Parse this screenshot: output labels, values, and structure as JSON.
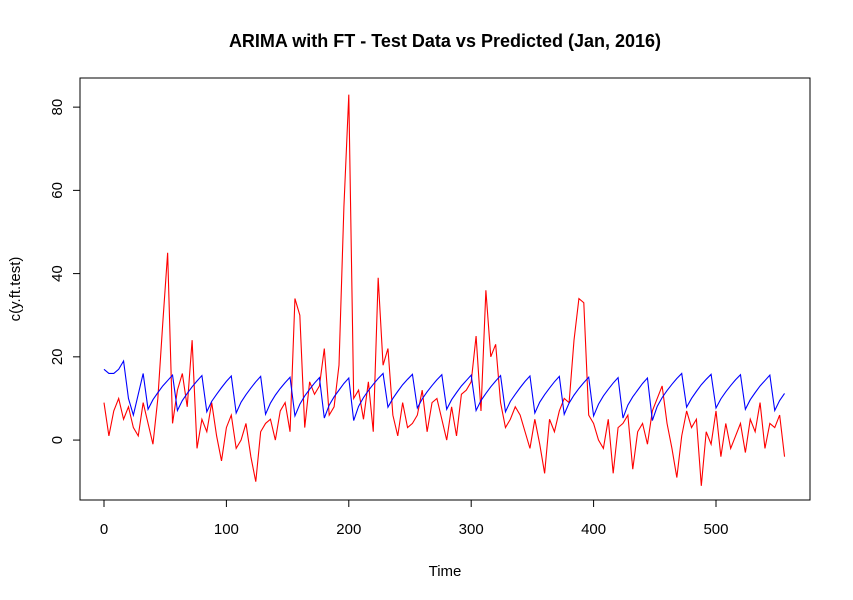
{
  "chart_data": {
    "type": "line",
    "title": "ARIMA with FT - Test Data vs Predicted (Jan, 2016)",
    "x_label": "Time",
    "y_label": "c(y.ft.test)",
    "xlim": [
      -19.6,
      576.8
    ],
    "ylim": [
      -14.4,
      87
    ],
    "xticks": [
      0,
      100,
      200,
      300,
      400,
      500
    ],
    "yticks": [
      0,
      20,
      40,
      60,
      80
    ],
    "x": [
      0,
      4,
      8,
      12,
      16,
      20,
      24,
      28,
      32,
      36,
      40,
      44,
      48,
      52,
      56,
      60,
      64,
      68,
      72,
      76,
      80,
      84,
      88,
      92,
      96,
      100,
      104,
      108,
      112,
      116,
      120,
      124,
      128,
      132,
      136,
      140,
      144,
      148,
      152,
      156,
      160,
      164,
      168,
      172,
      176,
      180,
      184,
      188,
      192,
      196,
      200,
      204,
      208,
      212,
      216,
      220,
      224,
      228,
      232,
      236,
      240,
      244,
      248,
      252,
      256,
      260,
      264,
      268,
      272,
      276,
      280,
      284,
      288,
      292,
      296,
      300,
      304,
      308,
      312,
      316,
      320,
      324,
      328,
      332,
      336,
      340,
      344,
      348,
      352,
      356,
      360,
      364,
      368,
      372,
      376,
      380,
      384,
      388,
      392,
      396,
      400,
      404,
      408,
      412,
      416,
      420,
      424,
      428,
      432,
      436,
      440,
      444,
      448,
      452,
      456,
      460,
      464,
      468,
      472,
      476,
      480,
      484,
      488,
      492,
      496,
      500,
      504,
      508,
      512,
      516,
      520,
      524,
      528,
      532,
      536,
      540,
      544,
      548,
      552,
      556
    ],
    "series": [
      {
        "color": "#ff0000",
        "values": [
          9,
          1,
          7,
          10,
          5,
          8,
          3,
          1,
          9,
          4,
          -1,
          10,
          28,
          45,
          4,
          12,
          16,
          8,
          24,
          -2,
          5,
          2,
          9,
          1,
          -5,
          3,
          6,
          -2,
          0,
          4,
          -4,
          -10,
          2,
          4,
          5,
          0,
          7,
          9,
          2,
          34,
          30,
          3,
          14,
          11,
          13,
          22,
          6,
          8,
          18,
          56,
          83,
          10,
          12,
          5,
          14,
          2,
          39,
          18,
          22,
          6,
          1,
          9,
          3,
          4,
          6,
          12,
          2,
          9,
          10,
          5,
          0,
          8,
          1,
          11,
          12,
          14,
          25,
          7,
          36,
          20,
          23,
          9,
          3,
          5,
          8,
          6,
          2,
          -2,
          5,
          -1,
          -8,
          5,
          2,
          7,
          10,
          9,
          24,
          34,
          33,
          6,
          4,
          0,
          -2,
          5,
          -8,
          3,
          4,
          6,
          -7,
          2,
          4,
          -1,
          7,
          10,
          13,
          4,
          -2,
          -9,
          1,
          7,
          3,
          5,
          -11,
          2,
          -1,
          7,
          -4,
          4,
          -2,
          1,
          4,
          -3,
          5,
          2,
          9,
          -2,
          4,
          3,
          6,
          -4
        ]
      },
      {
        "color": "#0000ff",
        "values": [
          17,
          16,
          16,
          17,
          19,
          10,
          6,
          11,
          16,
          7.4,
          9.7,
          11.4,
          13.0,
          14.3,
          15.6,
          7.1,
          9.5,
          11.2,
          12.8,
          14.2,
          15.5,
          6.8,
          9.3,
          11.0,
          12.6,
          14.1,
          15.4,
          6.5,
          9.1,
          10.9,
          12.5,
          14.0,
          15.3,
          6.2,
          8.9,
          10.8,
          12.4,
          13.8,
          15.1,
          5.8,
          8.6,
          10.6,
          12.2,
          13.7,
          15.0,
          5.3,
          8.4,
          10.4,
          12.0,
          13.6,
          14.9,
          4.7,
          8.1,
          10.2,
          11.9,
          13.4,
          14.8,
          16.0,
          7.9,
          10.0,
          11.7,
          13.3,
          14.6,
          15.8,
          7.7,
          9.9,
          11.6,
          13.1,
          14.5,
          15.7,
          7.4,
          9.7,
          11.4,
          13.0,
          14.3,
          15.6,
          7.1,
          9.5,
          11.2,
          12.8,
          14.2,
          15.5,
          6.8,
          9.3,
          11.0,
          12.6,
          14.1,
          15.4,
          6.5,
          9.1,
          10.9,
          12.5,
          14.0,
          15.3,
          6.2,
          8.9,
          10.8,
          12.4,
          13.8,
          15.1,
          5.8,
          8.6,
          10.6,
          12.2,
          13.7,
          15.0,
          5.3,
          8.4,
          10.4,
          12.0,
          13.6,
          14.9,
          4.7,
          8.1,
          10.2,
          11.9,
          13.4,
          14.8,
          16.0,
          7.9,
          10.0,
          11.7,
          13.3,
          14.6,
          15.8,
          7.7,
          9.9,
          11.6,
          13.1,
          14.5,
          15.7,
          7.4,
          9.7,
          11.4,
          13.0,
          14.3,
          15.6,
          7.1,
          9.5,
          11.2
        ]
      }
    ]
  }
}
